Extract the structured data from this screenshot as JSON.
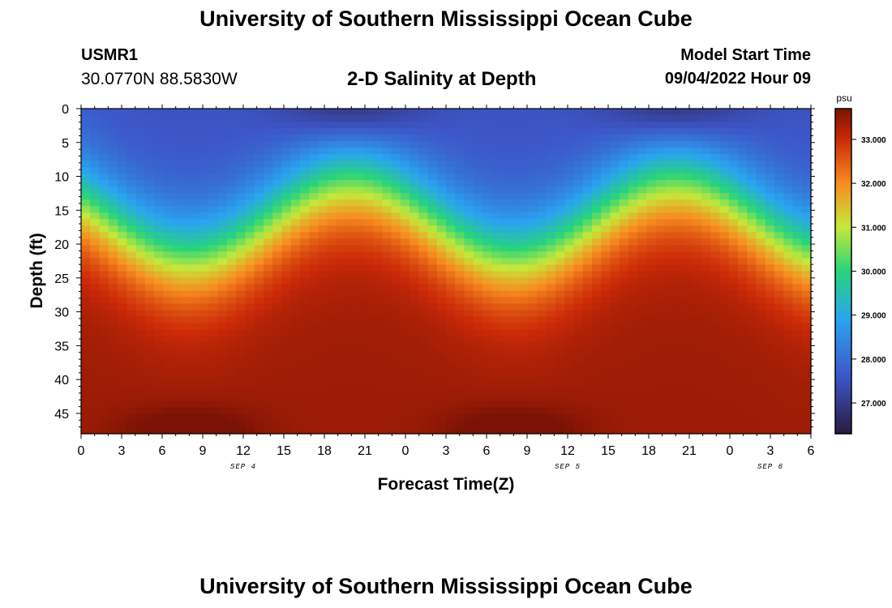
{
  "header": {
    "title": "University of Southern Mississippi Ocean Cube",
    "station": "USMR1",
    "coords": "30.0770N  88.5830W",
    "subtitle": "2-D Salinity at Depth",
    "start_label": "Model Start Time",
    "start_value": "09/04/2022 Hour 09"
  },
  "footer": {
    "title": "University of Southern Mississippi Ocean Cube"
  },
  "chart_data": {
    "type": "heatmap",
    "title": "2-D Salinity at Depth",
    "xlabel": "Forecast Time(Z)",
    "ylabel": "Depth (ft)",
    "x_tick_labels": [
      "0",
      "3",
      "6",
      "9",
      "12",
      "15",
      "18",
      "21",
      "0",
      "3",
      "6",
      "9",
      "12",
      "15",
      "18",
      "21",
      "0",
      "3",
      "6"
    ],
    "x_range_hours": [
      0,
      54
    ],
    "date_labels": [
      {
        "text": "SEP 4",
        "hour": 12
      },
      {
        "text": "SEP 5",
        "hour": 36
      },
      {
        "text": "SEP 6",
        "hour": 51
      }
    ],
    "y_ticks": [
      0,
      5,
      10,
      15,
      20,
      25,
      30,
      35,
      40,
      45
    ],
    "ylim": [
      48,
      0
    ],
    "colorbar": {
      "unit": "psu",
      "tick_labels": [
        "33.000",
        "32.000",
        "31.000",
        "30.000",
        "29.000",
        "28.000",
        "27.000"
      ],
      "tick_values": [
        33,
        32,
        31,
        30,
        29,
        28,
        27
      ],
      "range": [
        26.3,
        33.7
      ]
    },
    "field_model": {
      "description": "salinity increases with depth; halocline oscillates with ~24h period",
      "surface_psu": 27.5,
      "bottom_psu": 33.4,
      "halocline_depth_min_ft": 11,
      "halocline_depth_max_ft": 22,
      "shallow_phase_hours": [
        20,
        44
      ],
      "deep_phase_hours": [
        8,
        32
      ]
    },
    "colors": {
      "low": "#2a1a3e",
      "blue": "#3d56c8",
      "cyan": "#2aa4f0",
      "green": "#28d47a",
      "yellow": "#c6e83a",
      "orange": "#f78c20",
      "red": "#cc2a08",
      "high": "#7a1205"
    }
  }
}
